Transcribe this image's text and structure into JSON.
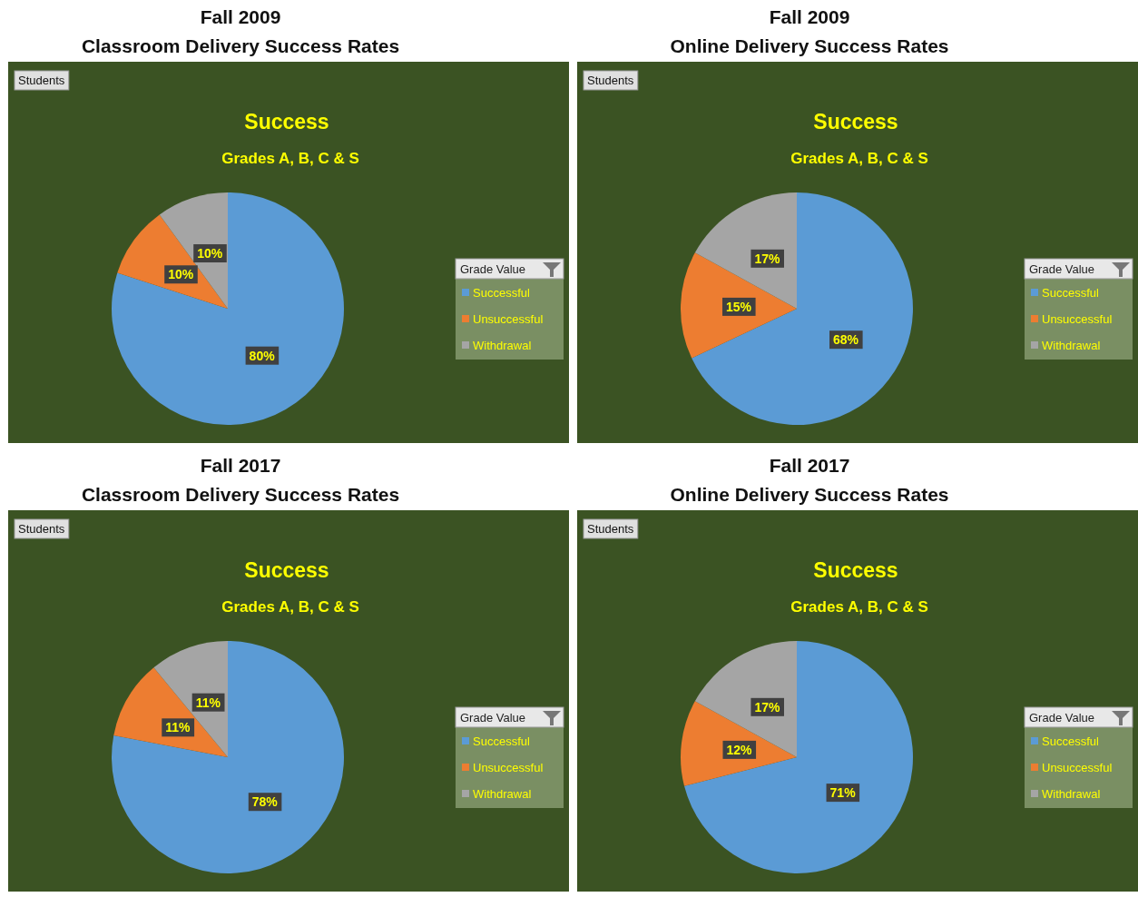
{
  "chart_data": [
    {
      "type": "pie",
      "title": "Fall 2009",
      "subtitle": "Classroom Delivery Success Rates",
      "legend_title": "Grade Value",
      "legend": "right",
      "annotations": [
        "Success",
        "Grades A, B, C & S",
        "Students"
      ],
      "categories": [
        "Successful",
        "Unsuccessful",
        "Withdrawal"
      ],
      "values": [
        80,
        10,
        10
      ],
      "value_labels": [
        "80%",
        "10%",
        "10%"
      ],
      "colors": [
        "#5b9bd5",
        "#ed7d31",
        "#a5a5a5"
      ]
    },
    {
      "type": "pie",
      "title": "Fall 2009",
      "subtitle": "Online Delivery Success Rates",
      "legend_title": "Grade Value",
      "legend": "right",
      "annotations": [
        "Success",
        "Grades A, B, C & S",
        "Students"
      ],
      "categories": [
        "Successful",
        "Unsuccessful",
        "Withdrawal"
      ],
      "values": [
        68,
        15,
        17
      ],
      "value_labels": [
        "68%",
        "15%",
        "17%"
      ],
      "colors": [
        "#5b9bd5",
        "#ed7d31",
        "#a5a5a5"
      ]
    },
    {
      "type": "pie",
      "title": "Fall 2017",
      "subtitle": "Classroom Delivery Success Rates",
      "legend_title": "Grade Value",
      "legend": "right",
      "annotations": [
        "Success",
        "Grades A, B, C & S",
        "Students"
      ],
      "categories": [
        "Successful",
        "Unsuccessful",
        "Withdrawal"
      ],
      "values": [
        78,
        11,
        11
      ],
      "value_labels": [
        "78%",
        "11%",
        "11%"
      ],
      "colors": [
        "#5b9bd5",
        "#ed7d31",
        "#a5a5a5"
      ]
    },
    {
      "type": "pie",
      "title": "Fall 2017",
      "subtitle": "Online Delivery Success Rates",
      "legend_title": "Grade Value",
      "legend": "right",
      "annotations": [
        "Success",
        "Grades A, B, C & S",
        "Students"
      ],
      "categories": [
        "Successful",
        "Unsuccessful",
        "Withdrawal"
      ],
      "values": [
        71,
        12,
        17
      ],
      "value_labels": [
        "71%",
        "12%",
        "17%"
      ],
      "colors": [
        "#5b9bd5",
        "#ed7d31",
        "#a5a5a5"
      ]
    }
  ]
}
